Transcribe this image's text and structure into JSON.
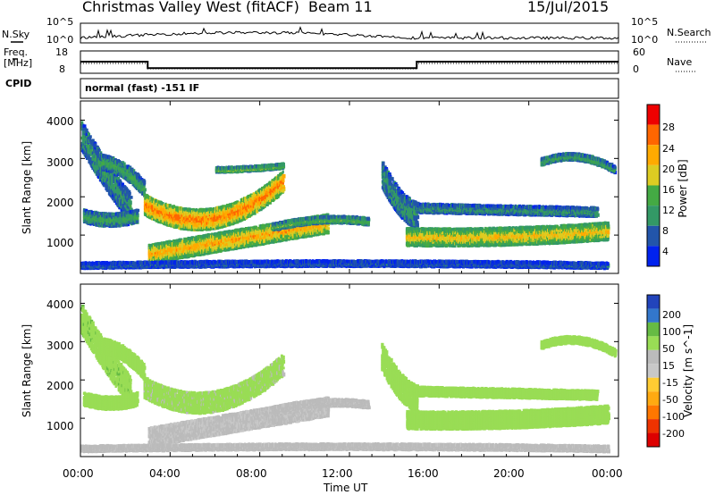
{
  "header": {
    "site": "Christmas Valley West (fitACF)",
    "beam": "Beam 11",
    "date": "15/Jul/2015"
  },
  "status_panel": {
    "nsky_label": "N.Sky",
    "nsky_ticks": [
      "10^5",
      "10^0"
    ],
    "nsearch_label": "N.Search",
    "nsearch_ticks": [
      "10^5",
      "10^0"
    ],
    "freq_label_line1": "Freq.",
    "freq_label_line2": "[MHz]",
    "freq_ticks": [
      "18",
      "8"
    ],
    "nave_label": "Nave",
    "nave_ticks": [
      "60",
      "0"
    ],
    "cpid_label": "CPID",
    "cpid_value": "normal (fast) -151 IF"
  },
  "axes": {
    "ylabel": "Slant Range [km]",
    "yticks": [
      1000,
      2000,
      3000,
      4000
    ],
    "ylim": [
      0,
      4500
    ],
    "xlabel": "Time UT",
    "xticks": [
      "00:00",
      "04:00",
      "08:00",
      "12:00",
      "16:00",
      "20:00",
      "00:00"
    ],
    "xlim_hours": [
      0,
      24
    ]
  },
  "colors": {
    "power": [
      "#0022ee",
      "#2255aa",
      "#339966",
      "#44aa44",
      "#ddcc22",
      "#ffaa00",
      "#ff6600",
      "#ee0000"
    ],
    "velocity": [
      "#2244bb",
      "#3377cc",
      "#66bb44",
      "#99dd55",
      "#bbbbbb",
      "#c8c8c8",
      "#ffcc33",
      "#ffaa11",
      "#ff7700",
      "#ee3300",
      "#dd0000"
    ],
    "ground_scatter": "#bebebe"
  },
  "chart_data": [
    {
      "type": "heatmap",
      "title": "",
      "xlabel": "Time UT",
      "ylabel": "Slant Range [km]",
      "xlim": [
        0,
        24
      ],
      "ylim": [
        0,
        4500
      ],
      "colorbar": {
        "label": "Power [dB]",
        "ticks": [
          4,
          8,
          12,
          16,
          20,
          24,
          28
        ],
        "range": [
          0,
          32
        ]
      },
      "regions": [
        {
          "t": [
            0.0,
            0.3,
            2.2
          ],
          "r": [
            3600,
            3300,
            1700
          ],
          "w": 700,
          "v": 10
        },
        {
          "t": [
            0.8,
            1.5,
            2.8
          ],
          "r": [
            2900,
            2800,
            2200
          ],
          "w": 350,
          "v": 12
        },
        {
          "t": [
            0.1,
            1.0,
            2.5
          ],
          "r": [
            1500,
            1400,
            1500
          ],
          "w": 300,
          "v": 12
        },
        {
          "t": [
            2.8,
            5.0,
            9.0
          ],
          "r": [
            1800,
            1400,
            2400
          ],
          "w": 500,
          "v": 25
        },
        {
          "t": [
            6.0,
            8.0,
            9.0
          ],
          "r": [
            2700,
            2750,
            2800
          ],
          "w": 100,
          "v": 15
        },
        {
          "t": [
            3.0,
            6.0,
            11.0
          ],
          "r": [
            500,
            800,
            1300
          ],
          "w": 450,
          "v": 22
        },
        {
          "t": [
            8.5,
            11.0,
            12.8
          ],
          "r": [
            1200,
            1400,
            1350
          ],
          "w": 150,
          "v": 14
        },
        {
          "t": [
            0.0,
            8.0,
            23.5
          ],
          "r": [
            200,
            250,
            200
          ],
          "w": 120,
          "v": 6
        },
        {
          "t": [
            13.4,
            14.0,
            15.0
          ],
          "r": [
            2600,
            2000,
            1500
          ],
          "w": 650,
          "v": 10
        },
        {
          "t": [
            14.5,
            18.0,
            23.5
          ],
          "r": [
            950,
            950,
            1100
          ],
          "w": 420,
          "v": 20
        },
        {
          "t": [
            15.0,
            19.0,
            23.0
          ],
          "r": [
            1700,
            1650,
            1600
          ],
          "w": 200,
          "v": 10
        },
        {
          "t": [
            20.5,
            22.5,
            23.8
          ],
          "r": [
            2900,
            3000,
            2700
          ],
          "w": 150,
          "v": 12
        }
      ]
    },
    {
      "type": "heatmap",
      "title": "",
      "xlabel": "Time UT",
      "ylabel": "Slant Range [km]",
      "xlim": [
        0,
        24
      ],
      "ylim": [
        0,
        4500
      ],
      "colorbar": {
        "label": "Velocity [m s^-1]",
        "ticks": [
          200,
          100,
          50,
          15,
          -15,
          -50,
          -100,
          -200
        ],
        "range": [
          -250,
          250
        ]
      },
      "regions": [
        {
          "t": [
            0.0,
            0.3,
            2.2
          ],
          "r": [
            3600,
            3300,
            1700
          ],
          "w": 700,
          "v": 5
        },
        {
          "t": [
            0.8,
            1.5,
            2.8
          ],
          "r": [
            2900,
            2800,
            2200
          ],
          "w": 350,
          "v": 0
        },
        {
          "t": [
            0.1,
            1.0,
            2.5
          ],
          "r": [
            1500,
            1400,
            1500
          ],
          "w": 300,
          "v": 0
        },
        {
          "t": [
            2.8,
            5.0,
            9.0
          ],
          "r": [
            1800,
            1400,
            2400
          ],
          "w": 500,
          "v": -5
        },
        {
          "t": [
            3.0,
            6.0,
            11.0
          ],
          "r": [
            500,
            800,
            1300
          ],
          "w": 450,
          "v": -45
        },
        {
          "t": [
            8.5,
            11.0,
            12.8
          ],
          "r": [
            1200,
            1400,
            1350
          ],
          "w": 150,
          "v": -40
        },
        {
          "t": [
            0.0,
            8.0,
            23.5
          ],
          "r": [
            200,
            250,
            200
          ],
          "w": 120,
          "v": -40
        },
        {
          "t": [
            13.4,
            14.0,
            15.0
          ],
          "r": [
            2600,
            2000,
            1500
          ],
          "w": 650,
          "v": 0
        },
        {
          "t": [
            14.5,
            18.0,
            23.5
          ],
          "r": [
            950,
            950,
            1100
          ],
          "w": 420,
          "v": 0
        },
        {
          "t": [
            15.0,
            19.0,
            23.0
          ],
          "r": [
            1700,
            1650,
            1600
          ],
          "w": 200,
          "v": 0
        },
        {
          "t": [
            20.5,
            22.5,
            23.8
          ],
          "r": [
            2900,
            3000,
            2700
          ],
          "w": 150,
          "v": 0
        }
      ]
    }
  ],
  "status_data": {
    "freq_mhz": [
      {
        "t": [
          0,
          3
        ],
        "v": 13
      },
      {
        "t": [
          3,
          15
        ],
        "v": 10
      },
      {
        "t": [
          15,
          24
        ],
        "v": 13
      }
    ],
    "nave": [
      {
        "t": [
          0,
          3
        ],
        "v": 25
      },
      {
        "t": [
          3,
          15
        ],
        "v": 10
      },
      {
        "t": [
          15,
          24
        ],
        "v": 25
      }
    ]
  }
}
